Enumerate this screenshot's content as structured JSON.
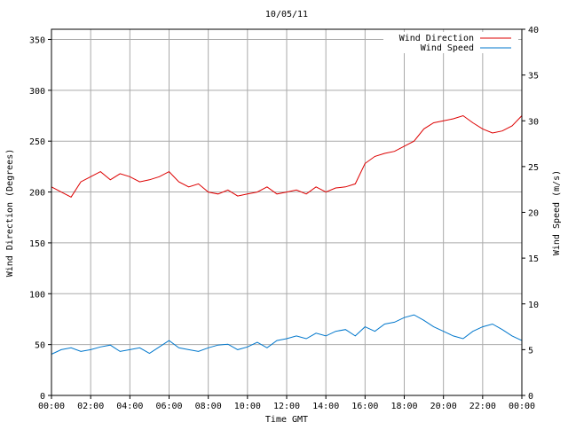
{
  "chart_data": {
    "type": "line",
    "title": "10/05/11",
    "xlabel": "Time GMT",
    "ylabel_left": "Wind Direction (Degrees)",
    "ylabel_right": "Wind Speed (m/s)",
    "x_tick_labels": [
      "00:00",
      "02:00",
      "04:00",
      "06:00",
      "08:00",
      "10:00",
      "12:00",
      "14:00",
      "16:00",
      "18:00",
      "20:00",
      "22:00",
      "00:00"
    ],
    "x_range_hours": [
      0,
      24
    ],
    "y_left_ticks": [
      0,
      50,
      100,
      150,
      200,
      250,
      300,
      350
    ],
    "y_left_range": [
      0,
      360
    ],
    "y_right_ticks": [
      0,
      5,
      10,
      15,
      20,
      25,
      30,
      35,
      40
    ],
    "y_right_range": [
      0,
      40
    ],
    "grid": true,
    "legend_position": "top-right",
    "series": [
      {
        "name": "Wind Direction",
        "axis": "left",
        "color": "#dd0000",
        "x_hours": [
          0,
          0.5,
          1,
          1.5,
          2,
          2.5,
          3,
          3.5,
          4,
          4.5,
          5,
          5.5,
          6,
          6.5,
          7,
          7.5,
          8,
          8.5,
          9,
          9.5,
          10,
          10.5,
          11,
          11.5,
          12,
          12.5,
          13,
          13.5,
          14,
          14.5,
          15,
          15.5,
          16,
          16.5,
          17,
          17.5,
          18,
          18.5,
          19,
          19.5,
          20,
          20.5,
          21,
          21.5,
          22,
          22.5,
          23,
          23.5,
          24
        ],
        "values": [
          205,
          200,
          195,
          210,
          215,
          220,
          212,
          218,
          215,
          210,
          212,
          215,
          220,
          210,
          205,
          208,
          200,
          198,
          202,
          196,
          198,
          200,
          205,
          198,
          200,
          202,
          198,
          205,
          200,
          204,
          205,
          208,
          228,
          235,
          238,
          240,
          245,
          250,
          262,
          268,
          270,
          272,
          275,
          268,
          262,
          258,
          260,
          265,
          275
        ]
      },
      {
        "name": "Wind Speed",
        "axis": "right",
        "color": "#0077cc",
        "x_hours": [
          0,
          0.5,
          1,
          1.5,
          2,
          2.5,
          3,
          3.5,
          4,
          4.5,
          5,
          5.5,
          6,
          6.5,
          7,
          7.5,
          8,
          8.5,
          9,
          9.5,
          10,
          10.5,
          11,
          11.5,
          12,
          12.5,
          13,
          13.5,
          14,
          14.5,
          15,
          15.5,
          16,
          16.5,
          17,
          17.5,
          18,
          18.5,
          19,
          19.5,
          20,
          20.5,
          21,
          21.5,
          22,
          22.5,
          23,
          23.5,
          24
        ],
        "values": [
          4.5,
          5,
          5.2,
          4.8,
          5,
          5.3,
          5.5,
          4.8,
          5,
          5.2,
          4.6,
          5.3,
          6,
          5.2,
          5,
          4.8,
          5.2,
          5.5,
          5.6,
          5,
          5.3,
          5.8,
          5.2,
          6,
          6.2,
          6.5,
          6.2,
          6.8,
          6.5,
          7,
          7.2,
          6.5,
          7.5,
          7,
          7.8,
          8,
          8.5,
          8.8,
          8.2,
          7.5,
          7,
          6.5,
          6.2,
          7,
          7.5,
          7.8,
          7.2,
          6.5,
          6
        ]
      }
    ]
  }
}
